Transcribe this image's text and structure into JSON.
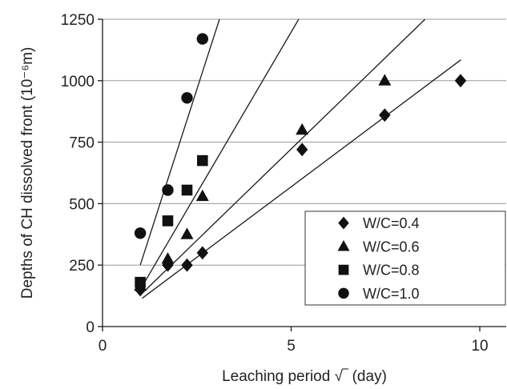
{
  "chart_data": {
    "type": "scatter",
    "title": "",
    "xlabel": "Leaching period √‾ (day)",
    "ylabel": "Depths of CH dissolved front (10⁻⁶m)",
    "xlim": [
      0,
      10.7
    ],
    "ylim": [
      0,
      1250
    ],
    "x_ticks": [
      0,
      5,
      10
    ],
    "y_ticks": [
      0,
      250,
      500,
      750,
      1000,
      1250
    ],
    "grid": "horizontal",
    "legend_position": "bottom-right",
    "series": [
      {
        "name": "W/C=0.4",
        "marker": "diamond",
        "points": [
          [
            1.0,
            150
          ],
          [
            1.73,
            250
          ],
          [
            2.24,
            250
          ],
          [
            2.65,
            300
          ],
          [
            5.29,
            720
          ],
          [
            7.48,
            860
          ],
          [
            9.49,
            1000
          ]
        ],
        "fit_line": [
          [
            1.05,
            115
          ],
          [
            9.5,
            1085
          ]
        ]
      },
      {
        "name": "W/C=0.6",
        "marker": "triangle",
        "points": [
          [
            1.0,
            165
          ],
          [
            1.73,
            275
          ],
          [
            2.24,
            375
          ],
          [
            2.65,
            530
          ],
          [
            5.29,
            800
          ],
          [
            7.48,
            1000
          ]
        ],
        "fit_line": [
          [
            1.05,
            135
          ],
          [
            8.55,
            1250
          ]
        ]
      },
      {
        "name": "W/C=0.8",
        "marker": "square",
        "points": [
          [
            1.0,
            180
          ],
          [
            1.73,
            430
          ],
          [
            2.24,
            555
          ],
          [
            2.65,
            675
          ]
        ],
        "fit_line": [
          [
            1.0,
            150
          ],
          [
            5.2,
            1250
          ]
        ]
      },
      {
        "name": "W/C=1.0",
        "marker": "circle",
        "points": [
          [
            1.0,
            380
          ],
          [
            1.73,
            555
          ],
          [
            2.24,
            930
          ],
          [
            2.65,
            1170
          ]
        ],
        "fit_line": [
          [
            1.0,
            250
          ],
          [
            3.1,
            1250
          ]
        ]
      }
    ]
  }
}
